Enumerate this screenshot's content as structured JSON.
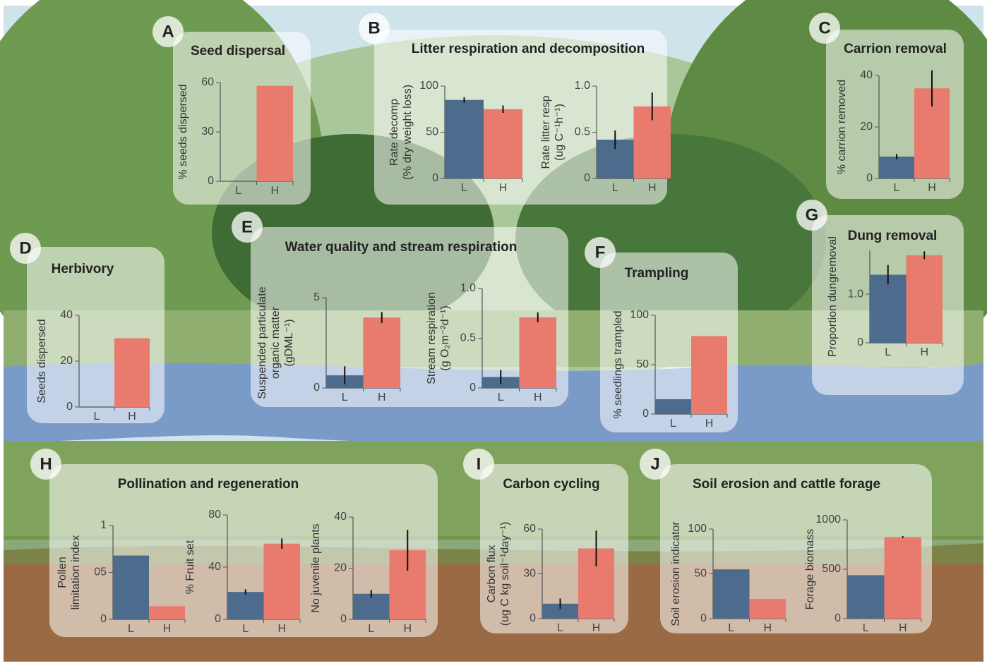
{
  "panels": [
    {
      "letter": "A",
      "title": "Seed dispersal"
    },
    {
      "letter": "B",
      "title": "Litter respiration and decomposition"
    },
    {
      "letter": "C",
      "title": "Carrion removal"
    },
    {
      "letter": "D",
      "title": "Herbivory"
    },
    {
      "letter": "E",
      "title": "Water quality and stream respiration"
    },
    {
      "letter": "F",
      "title": "Trampling"
    },
    {
      "letter": "G",
      "title": "Dung removal"
    },
    {
      "letter": "H",
      "title": "Pollination and regeneration"
    },
    {
      "letter": "I",
      "title": "Carbon cycling"
    },
    {
      "letter": "J",
      "title": "Soil erosion and cattle forage"
    }
  ],
  "chart_data": [
    {
      "type": "bar",
      "ylabel": [
        "% seeds dispersed"
      ],
      "categories": [
        "L",
        "H"
      ],
      "values": [
        0,
        58
      ],
      "colors": [
        "#4d6b8c",
        "#e87b6e"
      ],
      "ylim": [
        0,
        60
      ],
      "yticks": [
        0,
        30,
        60
      ]
    },
    {
      "type": "bar",
      "ylabel": [
        "Rate decomp",
        "(% dry weight loss)"
      ],
      "categories": [
        "L",
        "H"
      ],
      "values": [
        85,
        75
      ],
      "errors": [
        3,
        4
      ],
      "colors": [
        "#4d6b8c",
        "#e87b6e"
      ],
      "ylim": [
        0,
        100
      ],
      "yticks": [
        0,
        50,
        100
      ]
    },
    {
      "type": "bar",
      "ylabel": [
        "Rate litter resp",
        "(ug C⁻¹h⁻¹)"
      ],
      "categories": [
        "L",
        "H"
      ],
      "values": [
        0.42,
        0.78
      ],
      "errors": [
        0.1,
        0.15
      ],
      "colors": [
        "#4d6b8c",
        "#e87b6e"
      ],
      "ylim": [
        0,
        1
      ],
      "yticks": [
        0,
        0.5,
        {
          "value": 1,
          "label": "1.0"
        }
      ]
    },
    {
      "type": "bar",
      "ylabel": [
        "% carrion removed"
      ],
      "categories": [
        "L",
        "H"
      ],
      "values": [
        8.5,
        35
      ],
      "errors": [
        1,
        7
      ],
      "colors": [
        "#4d6b8c",
        "#e87b6e"
      ],
      "ylim": [
        0,
        40
      ],
      "yticks": [
        0,
        20,
        40
      ]
    },
    {
      "type": "bar",
      "ylabel": [
        "Seeds dispersed"
      ],
      "categories": [
        "L",
        "H"
      ],
      "values": [
        0,
        30
      ],
      "colors": [
        "#4d6b8c",
        "#e87b6e"
      ],
      "ylim": [
        0,
        40
      ],
      "yticks": [
        0,
        20,
        40
      ]
    },
    {
      "type": "bar",
      "ylabel": [
        "Suspended particulate",
        "organic matter",
        "(gDML⁻¹)"
      ],
      "categories": [
        "L",
        "H"
      ],
      "values": [
        0.7,
        3.9
      ],
      "errors": [
        0.5,
        0.3
      ],
      "colors": [
        "#4d6b8c",
        "#e87b6e"
      ],
      "ylim": [
        0,
        5
      ],
      "yticks": [
        0,
        5
      ]
    },
    {
      "type": "bar",
      "ylabel": [
        "Stream respiration",
        "(g O₂m⁻²d⁻¹)"
      ],
      "categories": [
        "L",
        "H"
      ],
      "values": [
        0.11,
        0.71
      ],
      "errors": [
        0.07,
        0.05
      ],
      "colors": [
        "#4d6b8c",
        "#e87b6e"
      ],
      "ylim": [
        0,
        1
      ],
      "yticks": [
        0,
        0.5,
        {
          "value": 1,
          "label": "1.0"
        }
      ]
    },
    {
      "type": "bar",
      "ylabel": [
        "% seedlings trampled"
      ],
      "categories": [
        "L",
        "H"
      ],
      "values": [
        15,
        79
      ],
      "colors": [
        "#4d6b8c",
        "#e87b6e"
      ],
      "ylim": [
        0,
        100
      ],
      "yticks": [
        0,
        50,
        100
      ]
    },
    {
      "type": "bar",
      "ylabel": [
        "Proportion dungremoval"
      ],
      "categories": [
        "L",
        "H"
      ],
      "values": [
        1.4,
        1.8
      ],
      "errors": [
        0.2,
        0.08
      ],
      "colors": [
        "#4d6b8c",
        "#e87b6e"
      ],
      "ylim": [
        0,
        1.9
      ],
      "yticks": [
        0,
        {
          "value": 1,
          "label": "1.0"
        }
      ]
    },
    {
      "type": "bar",
      "ylabel": [
        "Pollen",
        "limitation index"
      ],
      "categories": [
        "L",
        "H"
      ],
      "values": [
        0.68,
        0.14
      ],
      "colors": [
        "#4d6b8c",
        "#e87b6e"
      ],
      "ylim": [
        0,
        1
      ],
      "yticks": [
        0,
        {
          "value": 0.5,
          "label": "05"
        },
        1
      ]
    },
    {
      "type": "bar",
      "ylabel": [
        "% Fruit set"
      ],
      "categories": [
        "L",
        "H"
      ],
      "values": [
        21,
        58
      ],
      "errors": [
        2,
        4
      ],
      "colors": [
        "#4d6b8c",
        "#e87b6e"
      ],
      "ylim": [
        0,
        80
      ],
      "yticks": [
        0,
        40,
        80
      ]
    },
    {
      "type": "bar",
      "ylabel": [
        "No juvenile plants"
      ],
      "categories": [
        "L",
        "H"
      ],
      "values": [
        10,
        27
      ],
      "errors": [
        1.5,
        8
      ],
      "colors": [
        "#4d6b8c",
        "#e87b6e"
      ],
      "ylim": [
        0,
        40
      ],
      "yticks": [
        0,
        20,
        40
      ]
    },
    {
      "type": "bar",
      "ylabel": [
        "Carbon flux",
        "(ug C kg soil⁻¹day⁻¹)"
      ],
      "categories": [
        "L",
        "H"
      ],
      "values": [
        10,
        47
      ],
      "errors": [
        3.5,
        12
      ],
      "colors": [
        "#4d6b8c",
        "#e87b6e"
      ],
      "ylim": [
        0,
        60
      ],
      "yticks": [
        0,
        30,
        60
      ]
    },
    {
      "type": "bar",
      "ylabel": [
        "Soil erosion indicator"
      ],
      "categories": [
        "L",
        "H"
      ],
      "values": [
        55,
        22
      ],
      "colors": [
        "#4d6b8c",
        "#e87b6e"
      ],
      "ylim": [
        0,
        100
      ],
      "yticks": [
        0,
        50,
        100
      ]
    },
    {
      "type": "bar",
      "ylabel": [
        "Forage biomass"
      ],
      "categories": [
        "L",
        "H"
      ],
      "values": [
        440,
        825
      ],
      "errors": [
        null,
        10
      ],
      "colors": [
        "#4d6b8c",
        "#e87b6e"
      ],
      "ylim": [
        0,
        1000
      ],
      "yticks": [
        0,
        500,
        1000
      ]
    }
  ]
}
